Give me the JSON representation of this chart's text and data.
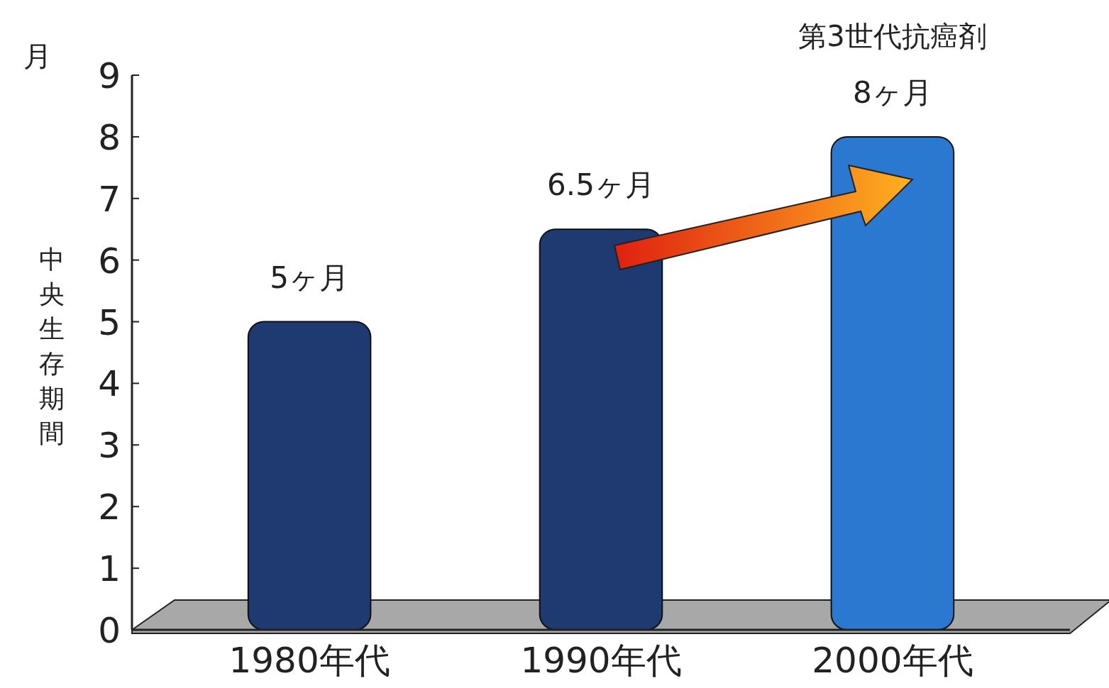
{
  "chart_data": {
    "type": "bar",
    "ylabel": "中央生存期間",
    "categories": [
      "1980年代",
      "1990年代",
      "2000年代"
    ],
    "values": [
      5,
      6.5,
      8
    ],
    "value_labels": [
      "5ヶ月",
      "6.5ヶ月",
      "8ヶ月"
    ],
    "colors": [
      "#1f3a70",
      "#1f3a70",
      "#2a78d0"
    ],
    "ylim": [
      0,
      9
    ],
    "yticks": [
      0,
      1,
      2,
      3,
      4,
      5,
      6,
      7,
      8,
      9
    ],
    "annotations": [
      "月",
      {
        "text": "第3世代抗癌剤",
        "x": "2000年代",
        "y": 8
      }
    ]
  }
}
